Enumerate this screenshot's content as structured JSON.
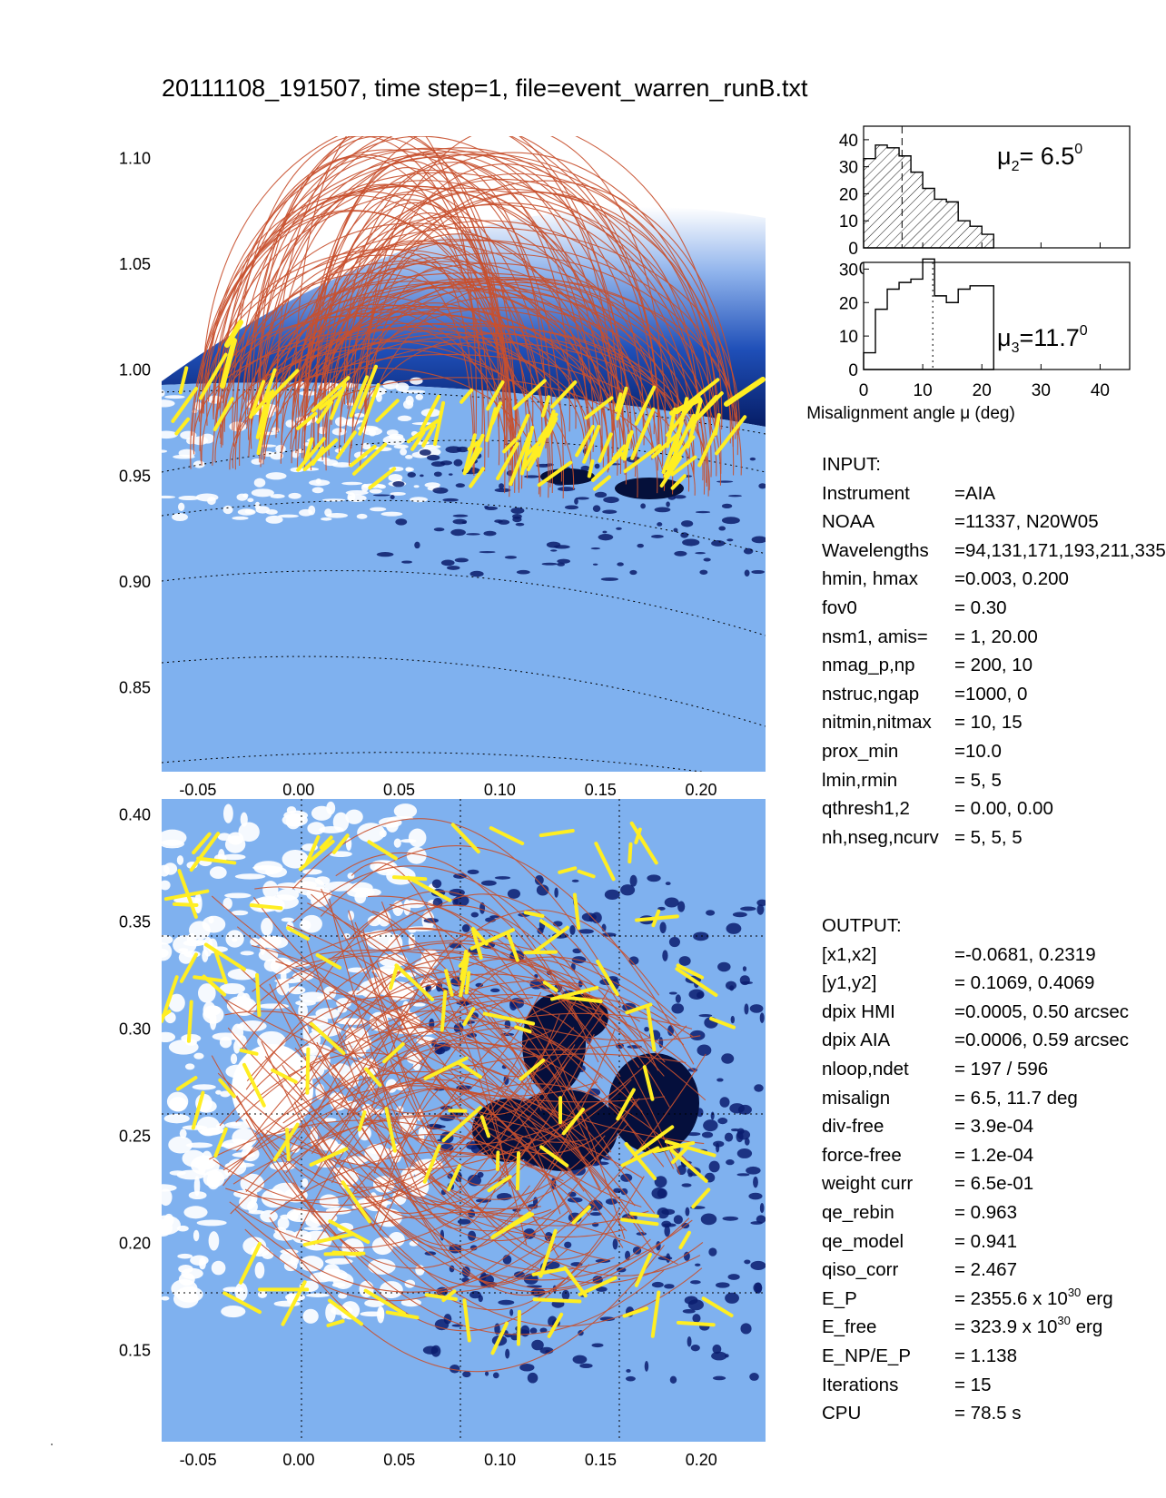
{
  "title": "20111108_191507, time step=1, file=event_warren_runB.txt",
  "colors": {
    "loop_model": "#c8502e",
    "loop_observed": "#ffee22",
    "disk": "#7fb1ef",
    "corona_dark": "#0a2a7a",
    "axis": "#000000"
  },
  "chart_data": [
    {
      "type": "image",
      "panel": "side view",
      "ylim": [
        0.81,
        1.11
      ],
      "xlim": [
        -0.068,
        0.232
      ],
      "yticks": [
        "1.10",
        "1.05",
        "1.00",
        "0.95",
        "0.90",
        "0.85"
      ],
      "xticks": [
        "-0.05",
        "0.00",
        "0.05",
        "0.10",
        "0.15",
        "0.20"
      ]
    },
    {
      "type": "image",
      "panel": "top view",
      "ylim": [
        0.1069,
        0.4069
      ],
      "xlim": [
        -0.0681,
        0.2319
      ],
      "yticks": [
        "0.40",
        "0.35",
        "0.30",
        "0.25",
        "0.20",
        "0.15"
      ],
      "xticks": [
        "-0.05",
        "0.00",
        "0.05",
        "0.10",
        "0.15",
        "0.20"
      ]
    },
    {
      "type": "histogram",
      "panel": "mu2",
      "label": "μ2= 6.5",
      "mu": 6.5,
      "bins": [
        0,
        2,
        4,
        6,
        8,
        10,
        12,
        14,
        16,
        18,
        20
      ],
      "values": [
        33,
        38,
        37,
        34,
        28,
        22,
        18,
        17,
        10,
        8,
        5
      ],
      "ylim": [
        0,
        45
      ],
      "yticks": [
        "40",
        "30",
        "20",
        "10",
        "0"
      ],
      "xlim": [
        0,
        45
      ],
      "xticks": [
        "0",
        "10",
        "20",
        "30",
        "40"
      ]
    },
    {
      "type": "histogram",
      "panel": "mu3",
      "label": "μ3=11.7",
      "mu": 11.7,
      "bins": [
        0,
        2,
        4,
        6,
        8,
        10,
        12,
        14,
        16,
        18,
        20
      ],
      "values": [
        5,
        18,
        24,
        26,
        27,
        33,
        22,
        20,
        24,
        25,
        25
      ],
      "ylim": [
        0,
        32
      ],
      "yticks": [
        "30",
        "20",
        "10",
        "0"
      ],
      "xlim": [
        0,
        45
      ],
      "xticks": [
        "0",
        "10",
        "20",
        "30",
        "40"
      ],
      "xlabel": "Misalignment angle μ (deg)"
    }
  ],
  "hist_labels": {
    "mu2_text": "μ",
    "mu2_sub": "2",
    "mu2_val": "= 6.5",
    "mu2_sup": "0",
    "mu3_text": "μ",
    "mu3_sub": "3",
    "mu3_val": "=11.7",
    "mu3_sup": "0"
  },
  "input": {
    "header": "INPUT:",
    "rows": [
      {
        "k": "Instrument",
        "v": "=AIA"
      },
      {
        "k": "NOAA",
        "v": "=11337, N20W05"
      },
      {
        "k": "Wavelengths",
        "v": "=94,131,171,193,211,335"
      },
      {
        "k": "hmin, hmax",
        "v": "=0.003, 0.200"
      },
      {
        "k": "fov0",
        "v": "= 0.30"
      },
      {
        "k": "nsm1, amis=",
        "v": "=   1, 20.00"
      },
      {
        "k": "nmag_p,np",
        "v": "= 200,   10"
      },
      {
        "k": "nstruc,ngap",
        "v": "=1000,    0"
      },
      {
        "k": "nitmin,nitmax",
        "v": "=  10,   15"
      },
      {
        "k": "prox_min",
        "v": "=10.0"
      },
      {
        "k": "lmin,rmin",
        "v": "=   5,    5"
      },
      {
        "k": "qthresh1,2",
        "v": "= 0.00,  0.00"
      },
      {
        "k": "nh,nseg,ncurv",
        "v": "= 5,  5,  5"
      }
    ]
  },
  "output": {
    "header": "OUTPUT:",
    "rows": [
      {
        "k": "[x1,x2]",
        "v": "=-0.0681,  0.2319"
      },
      {
        "k": "[y1,y2]",
        "v": "= 0.1069,  0.4069"
      },
      {
        "k": "dpix HMI",
        "v": "=0.0005,  0.50 arcsec"
      },
      {
        "k": "dpix AIA",
        "v": "=0.0006,  0.59 arcsec"
      },
      {
        "k": "nloop,ndet",
        "v": "= 197 /  596"
      },
      {
        "k": "misalign",
        "v": "=   6.5,  11.7 deg"
      },
      {
        "k": "div-free",
        "v": "= 3.9e-04"
      },
      {
        "k": "force-free",
        "v": "= 1.2e-04"
      },
      {
        "k": "weight curr",
        "v": "= 6.5e-01"
      },
      {
        "k": "qe_rebin",
        "v": "= 0.963"
      },
      {
        "k": "qe_model",
        "v": "= 0.941"
      },
      {
        "k": "qiso_corr",
        "v": "= 2.467"
      },
      {
        "k": "E_P",
        "v": "= 2355.6 x 10",
        "sup": "30",
        "tail": " erg"
      },
      {
        "k": "E_free",
        "v": "= 323.9 x 10",
        "sup": "30",
        "tail": " erg"
      },
      {
        "k": "E_NP/E_P",
        "v": "= 1.138"
      },
      {
        "k": "Iterations",
        "v": "= 15"
      },
      {
        "k": "CPU",
        "v": "=    78.5 s"
      }
    ]
  }
}
